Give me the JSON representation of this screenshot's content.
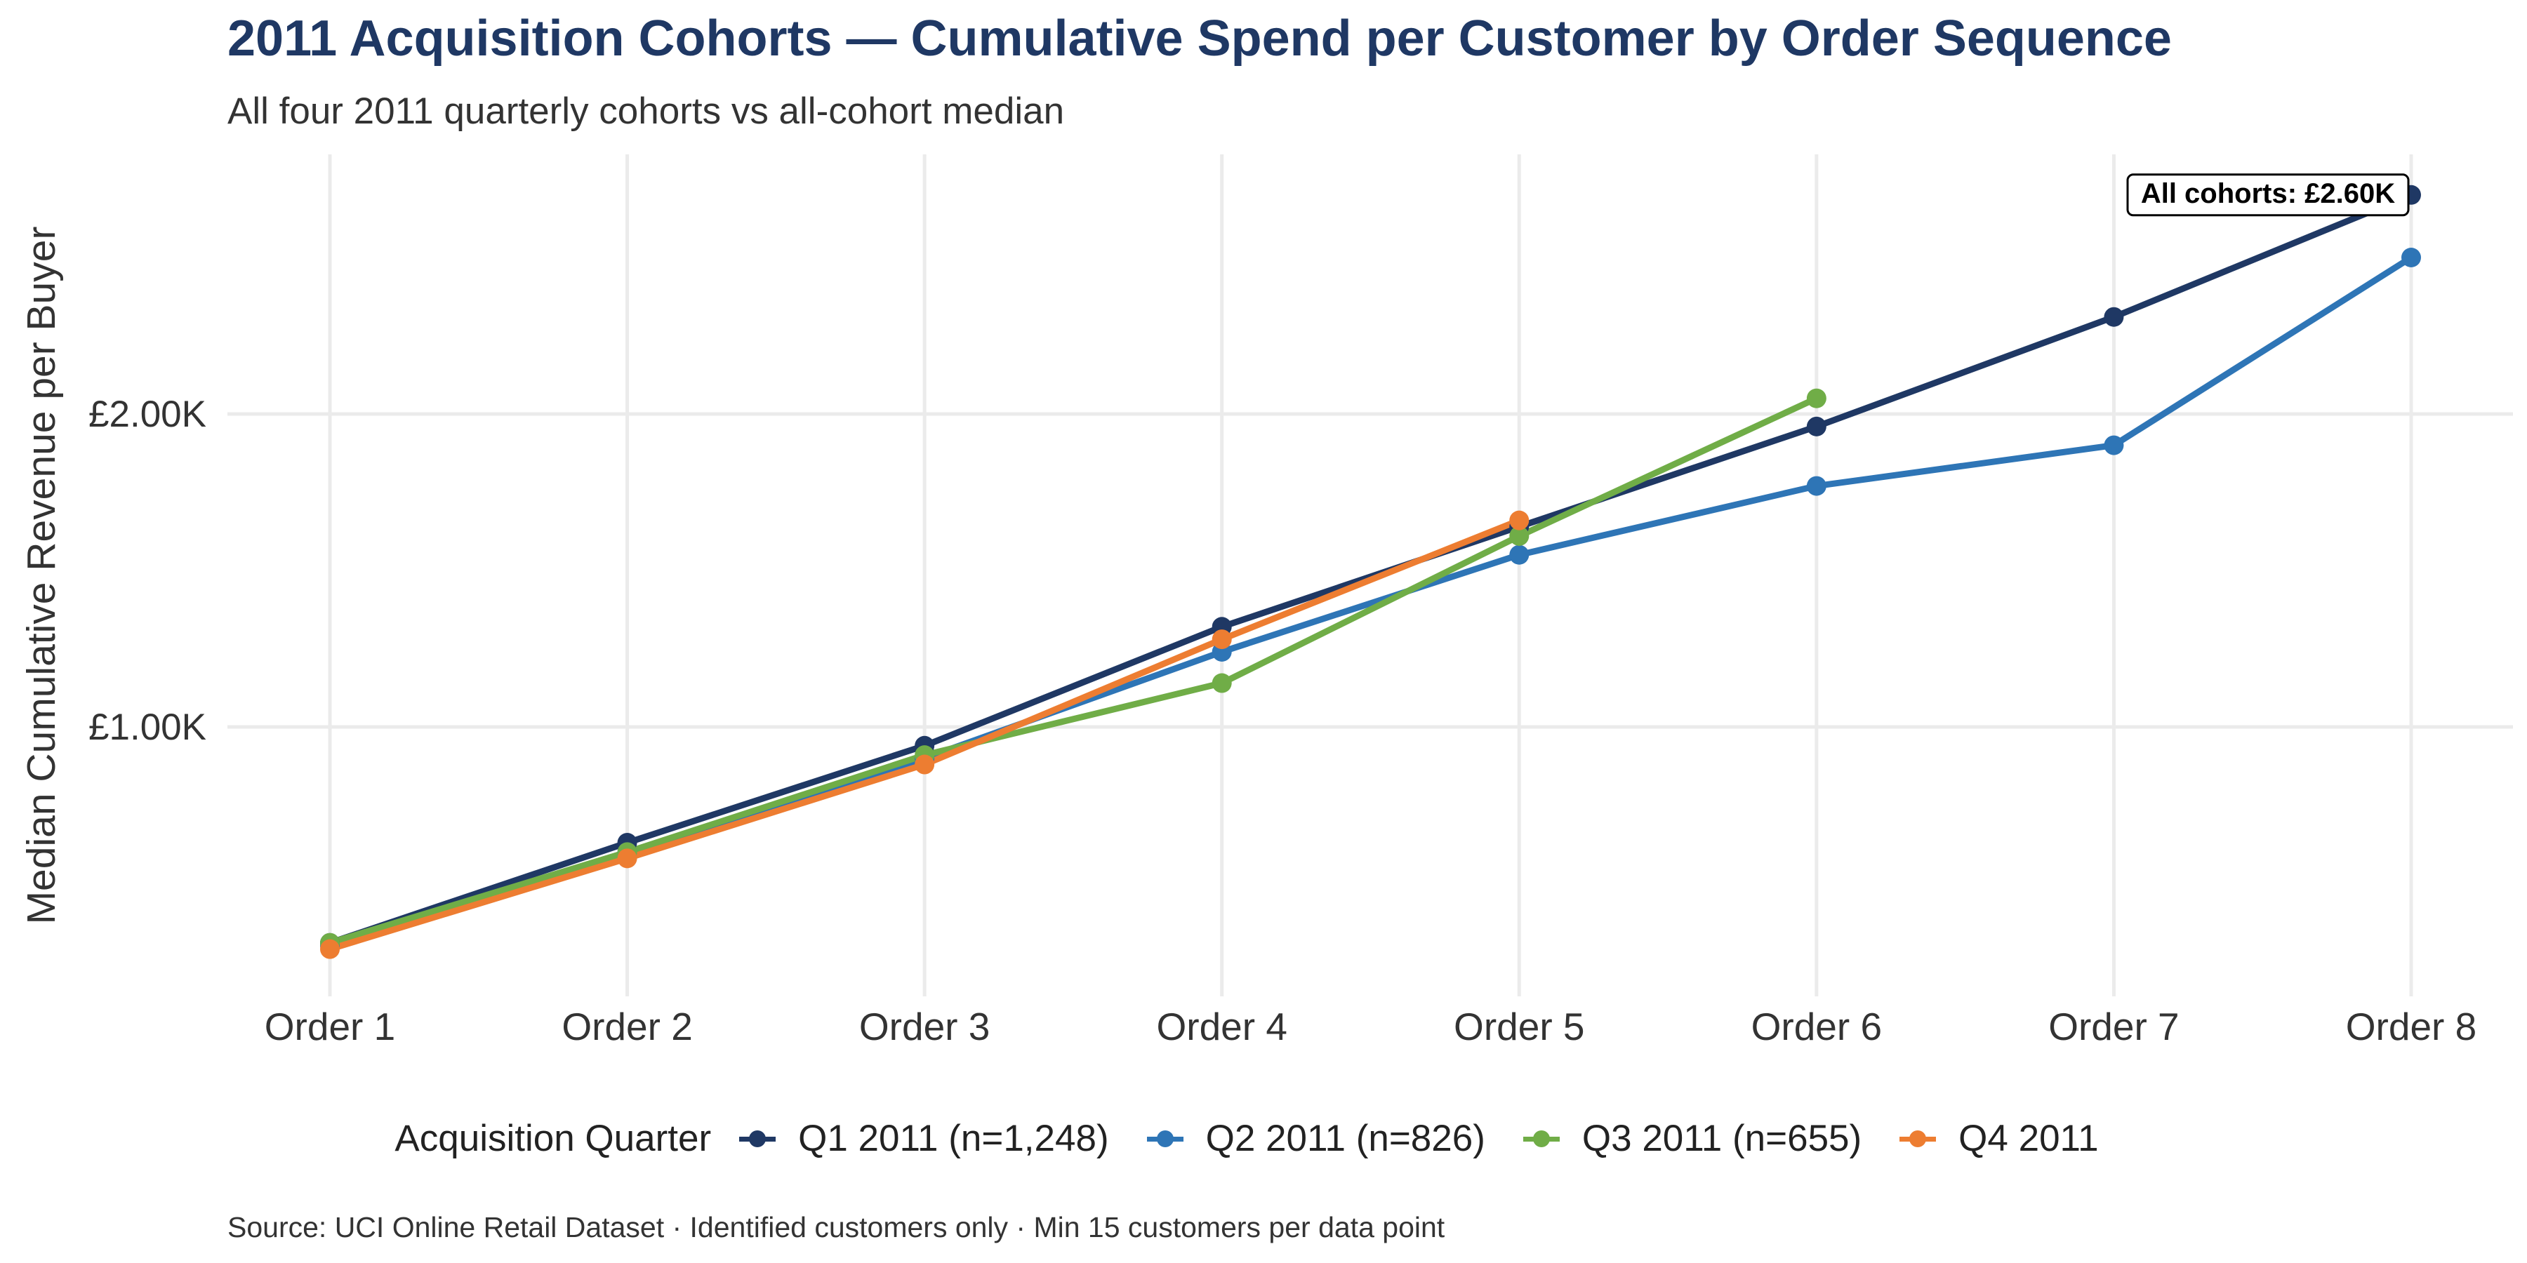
{
  "title": "2011 Acquisition Cohorts — Cumulative Spend per Customer by Order Sequence",
  "subtitle": "All four 2011 quarterly cohorts vs all-cohort median",
  "caption": "Source: UCI Online Retail Dataset · Identified customers only · Min 15 customers per data point",
  "legend": {
    "title": "Acquisition Quarter"
  },
  "chart_data": {
    "type": "line",
    "title": "2011 Acquisition Cohorts — Cumulative Spend per Customer by Order Sequence",
    "ylabel": "Median Cumulative Revenue per Buyer",
    "xlabel": "",
    "categories": [
      "Order 1",
      "Order 2",
      "Order 3",
      "Order 4",
      "Order 5",
      "Order 6",
      "Order 7",
      "Order 8"
    ],
    "ylim": [
      230,
      2780
    ],
    "yticks": [
      1000,
      2000
    ],
    "ytick_labels": [
      "£1.00K",
      "£2.00K"
    ],
    "grid": true,
    "legend_position": "bottom",
    "series": [
      {
        "name": "Q1 2011 (n=1,248)",
        "color": "#1f3864",
        "values": [
          310,
          630,
          940,
          1320,
          1640,
          1960,
          2310,
          2700
        ]
      },
      {
        "name": "Q2 2011 (n=826)",
        "color": "#2e75b6",
        "values": [
          300,
          600,
          900,
          1240,
          1550,
          1770,
          1900,
          2500
        ]
      },
      {
        "name": "Q3 2011 (n=655)",
        "color": "#70ad47",
        "values": [
          310,
          600,
          910,
          1140,
          1610,
          2050,
          null,
          null
        ]
      },
      {
        "name": "Q4 2011",
        "color": "#ed7d31",
        "values": [
          290,
          580,
          880,
          1280,
          1660,
          null,
          null,
          null
        ]
      }
    ],
    "annotations": [
      {
        "text": "All cohorts: £2.60K",
        "category": "Order 8",
        "y": 2700
      }
    ]
  }
}
